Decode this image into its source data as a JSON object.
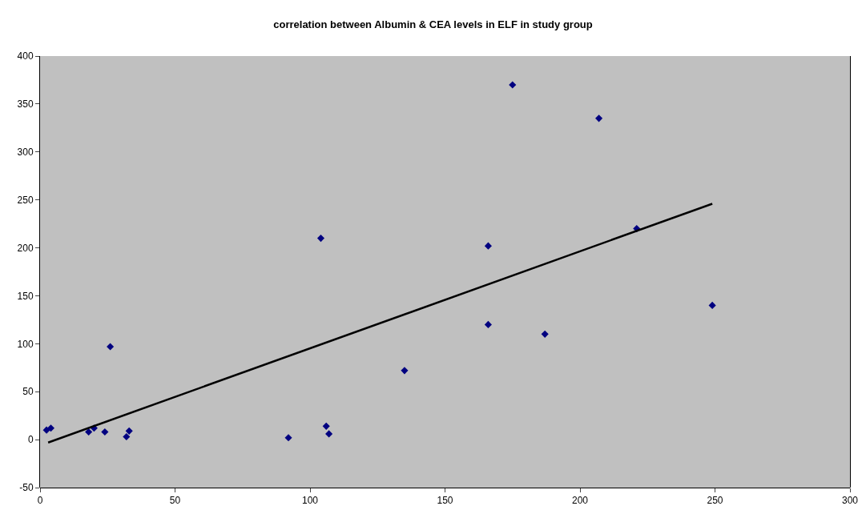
{
  "chart_data": {
    "type": "scatter",
    "title": "correlation between Albumin & CEA levels in ELF in study group",
    "xlim": [
      0,
      300
    ],
    "xticks": [
      0,
      50,
      100,
      150,
      200,
      250,
      300
    ],
    "ylim": [
      -50,
      400
    ],
    "yticks": [
      -50,
      0,
      50,
      100,
      150,
      200,
      250,
      300,
      350,
      400
    ],
    "grid": false,
    "legend": false,
    "marker": "diamond",
    "series": [
      {
        "color": "#000080",
        "x": [
          2.4,
          4,
          18,
          20,
          24,
          26,
          32,
          33,
          92,
          104,
          106,
          107,
          135,
          166,
          166,
          175,
          187,
          207,
          221,
          249
        ],
        "values": [
          10,
          12,
          8,
          12,
          8,
          97,
          3,
          9,
          2,
          210,
          14,
          6,
          72,
          202,
          120,
          370,
          110,
          335,
          220,
          140
        ]
      },
      {
        "type": "line",
        "marker": "none",
        "color": "#000000",
        "x": [
          3,
          249
        ],
        "values": [
          -3,
          246
        ]
      }
    ]
  }
}
